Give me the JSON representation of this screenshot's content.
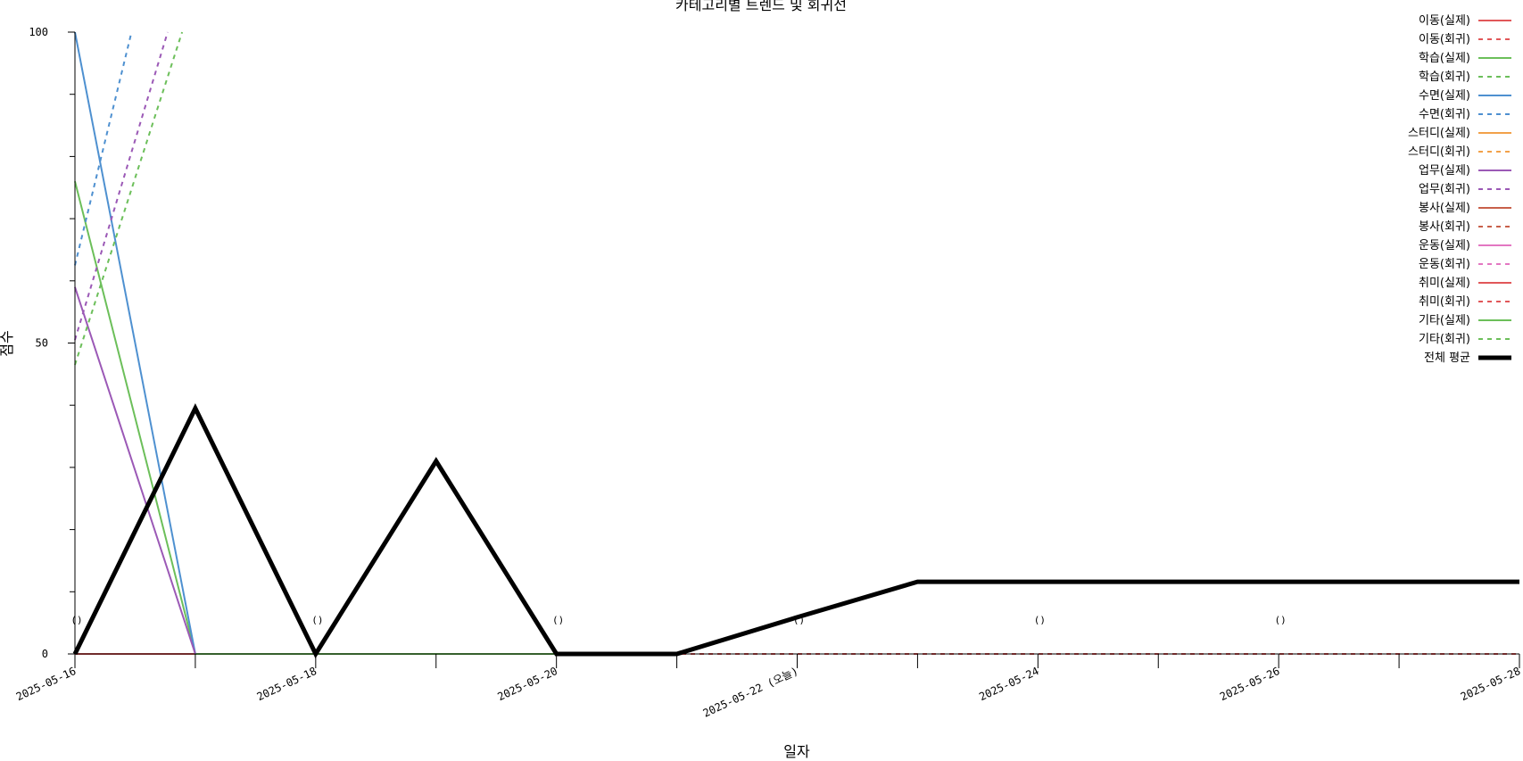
{
  "chart_data": {
    "type": "line",
    "title": "카테고리별 트렌드 및 회귀선",
    "xlabel": "일자",
    "ylabel": "점수",
    "x": [
      "2025-05-16",
      "2025-05-17",
      "2025-05-18",
      "2025-05-19",
      "2025-05-20",
      "2025-05-21",
      "2025-05-22",
      "2025-05-23",
      "2025-05-24",
      "2025-05-25",
      "2025-05-26",
      "2025-05-27",
      "2025-05-28"
    ],
    "x_tick_labels": [
      "2025-05-16",
      "2025-05-18",
      "2025-05-20",
      "2025-05-22 (오늘)",
      "2025-05-24",
      "2025-05-26",
      "2025-05-28"
    ],
    "x_tick_label_positions": [
      "2025-05-16",
      "2025-05-18",
      "2025-05-20",
      "2025-05-22",
      "2025-05-24",
      "2025-05-26",
      "2025-05-28"
    ],
    "y_ticks": [
      0,
      50,
      100
    ],
    "ylim": [
      0,
      100
    ],
    "grid": false,
    "legend_position": "top-right",
    "annotations": [
      {
        "x": "2025-05-16",
        "y": 5.5,
        "text": "()"
      },
      {
        "x": "2025-05-18",
        "y": 5.5,
        "text": "()"
      },
      {
        "x": "2025-05-20",
        "y": 5.5,
        "text": "()"
      },
      {
        "x": "2025-05-22",
        "y": 5.5,
        "text": "()"
      },
      {
        "x": "2025-05-24",
        "y": 5.5,
        "text": "()"
      },
      {
        "x": "2025-05-26",
        "y": 5.5,
        "text": "()"
      }
    ],
    "series": [
      {
        "name": "이동(실제)",
        "color": "#e15759",
        "style": "solid",
        "width": 2,
        "points": [
          [
            "2025-05-16",
            0
          ],
          [
            "2025-05-17",
            0
          ],
          [
            "2025-05-18",
            0
          ],
          [
            "2025-05-19",
            0
          ],
          [
            "2025-05-20",
            0
          ]
        ]
      },
      {
        "name": "이동(회귀)",
        "color": "#e15759",
        "style": "dashed",
        "width": 2,
        "points": [
          [
            "2025-05-16",
            0
          ],
          [
            "2025-05-28",
            0
          ]
        ]
      },
      {
        "name": "학습(실제)",
        "color": "#6cbf5a",
        "style": "solid",
        "width": 2,
        "points": [
          [
            "2025-05-16",
            76
          ],
          [
            "2025-05-17",
            0
          ],
          [
            "2025-05-18",
            0
          ],
          [
            "2025-05-19",
            0
          ],
          [
            "2025-05-20",
            0
          ]
        ]
      },
      {
        "name": "학습(회귀)",
        "color": "#6cbf5a",
        "style": "dashed",
        "width": 2,
        "points": []
      },
      {
        "name": "수면(실제)",
        "color": "#4e90d0",
        "style": "solid",
        "width": 2,
        "points": [
          [
            "2025-05-16",
            100
          ],
          [
            "2025-05-17",
            0
          ]
        ]
      },
      {
        "name": "수면(회귀)",
        "color": "#4e90d0",
        "style": "dashed",
        "width": 2,
        "points": [
          [
            "2025-05-16",
            62.5
          ],
          [
            "2025-05-16.47",
            100
          ]
        ]
      },
      {
        "name": "스터디(실제)",
        "color": "#f2a14a",
        "style": "solid",
        "width": 2,
        "points": []
      },
      {
        "name": "스터디(회귀)",
        "color": "#f2a14a",
        "style": "dashed",
        "width": 2,
        "points": []
      },
      {
        "name": "업무(실제)",
        "color": "#9b59b6",
        "style": "solid",
        "width": 2,
        "points": [
          [
            "2025-05-16",
            59
          ],
          [
            "2025-05-17",
            0
          ]
        ]
      },
      {
        "name": "업무(회귀)",
        "color": "#9b59b6",
        "style": "dashed",
        "width": 2,
        "points": [
          [
            "2025-05-16",
            50.5
          ],
          [
            "2025-05-16.77",
            100
          ]
        ]
      },
      {
        "name": "봉사(실제)",
        "color": "#c8604a",
        "style": "solid",
        "width": 2,
        "points": []
      },
      {
        "name": "봉사(회귀)",
        "color": "#c8604a",
        "style": "dashed",
        "width": 2,
        "points": []
      },
      {
        "name": "운동(실제)",
        "color": "#e377c2",
        "style": "solid",
        "width": 2,
        "points": []
      },
      {
        "name": "운동(회귀)",
        "color": "#e377c2",
        "style": "dashed",
        "width": 2,
        "points": []
      },
      {
        "name": "취미(실제)",
        "color": "#e15759",
        "style": "solid",
        "width": 2,
        "points": []
      },
      {
        "name": "취미(회귀)",
        "color": "#e15759",
        "style": "dashed",
        "width": 2,
        "points": []
      },
      {
        "name": "기타(실제)",
        "color": "#6cbf5a",
        "style": "solid",
        "width": 2,
        "points": []
      },
      {
        "name": "기타(회귀)",
        "color": "#6cbf5a",
        "style": "dashed",
        "width": 2,
        "points": [
          [
            "2025-05-16",
            46.5
          ],
          [
            "2025-05-16.89",
            100
          ]
        ]
      },
      {
        "name": "전체 평균",
        "color": "#000000",
        "style": "solid",
        "width": 5,
        "points": [
          [
            "2025-05-16",
            0
          ],
          [
            "2025-05-17",
            39.5
          ],
          [
            "2025-05-18",
            0
          ],
          [
            "2025-05-19",
            31
          ],
          [
            "2025-05-20",
            0
          ],
          [
            "2025-05-21",
            0
          ],
          [
            "2025-05-22",
            5.9
          ],
          [
            "2025-05-23",
            11.6
          ],
          [
            "2025-05-24",
            11.6
          ],
          [
            "2025-05-25",
            11.6
          ],
          [
            "2025-05-26",
            11.6
          ],
          [
            "2025-05-27",
            11.6
          ],
          [
            "2025-05-28",
            11.6
          ]
        ]
      }
    ]
  }
}
